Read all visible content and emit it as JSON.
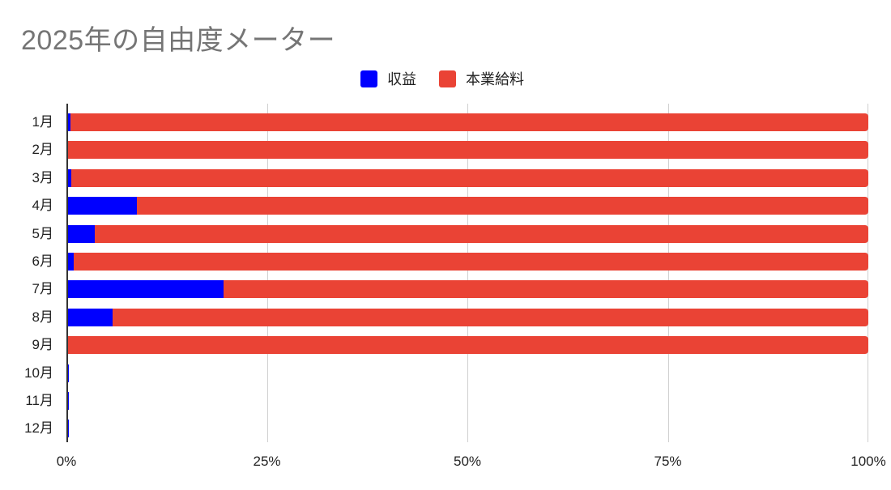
{
  "chart_data": {
    "type": "bar",
    "orientation": "horizontal",
    "stacked": "percent",
    "title": "2025年の自由度メーター",
    "xlabel": "",
    "ylabel": "",
    "xlim": [
      0,
      100
    ],
    "x_ticks": [
      "0%",
      "25%",
      "50%",
      "75%",
      "100%"
    ],
    "grid": true,
    "legend_position": "top",
    "categories": [
      "1月",
      "2月",
      "3月",
      "4月",
      "5月",
      "6月",
      "7月",
      "8月",
      "9月",
      "10月",
      "11月",
      "12月"
    ],
    "series": [
      {
        "name": "収益",
        "color": "#0000ff",
        "values": [
          0.5,
          0,
          0.6,
          8.8,
          3.5,
          0.9,
          19.6,
          5.8,
          0,
          0.3,
          0.3,
          0.3
        ]
      },
      {
        "name": "本業給料",
        "color": "#ea4335",
        "values": [
          99.5,
          100,
          99.4,
          91.2,
          96.5,
          99.1,
          80.4,
          94.2,
          100,
          0,
          0,
          0
        ]
      }
    ]
  },
  "legend": [
    {
      "label": "収益",
      "color": "#0000ff"
    },
    {
      "label": "本業給料",
      "color": "#ea4335"
    }
  ]
}
